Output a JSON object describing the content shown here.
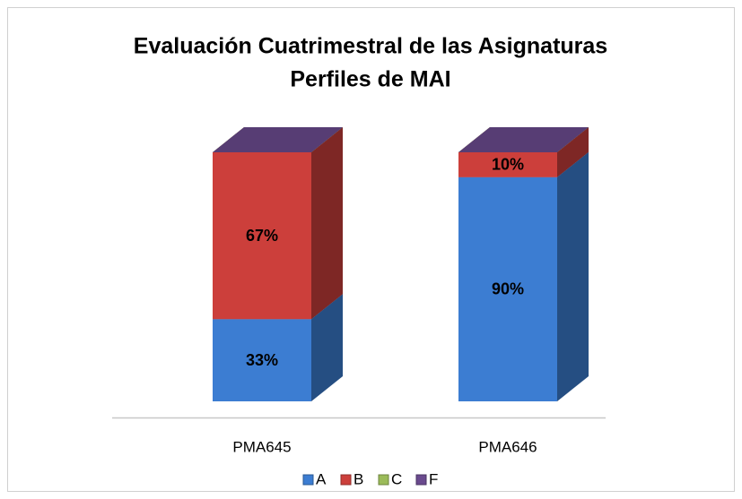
{
  "chart_data": {
    "type": "bar3d_stacked",
    "title": [
      "Evaluación Cuatrimestral de las Asignaturas",
      "Perfiles de MAI"
    ],
    "categories": [
      "PMA645",
      "PMA646"
    ],
    "series": [
      {
        "name": "A",
        "color": "#3c7dd2",
        "values": [
          33,
          90
        ],
        "value_labels": [
          "33%",
          "90%"
        ]
      },
      {
        "name": "B",
        "color": "#cc3f3b",
        "values": [
          67,
          10
        ],
        "value_labels": [
          "67%",
          "10%"
        ]
      },
      {
        "name": "C",
        "color": "#9bbb59",
        "values": [
          0,
          0
        ],
        "value_labels": [
          null,
          null
        ]
      },
      {
        "name": "F",
        "color": "#6a4a8e",
        "values": [
          0,
          0
        ],
        "value_labels": [
          null,
          null
        ]
      }
    ],
    "ylim": [
      0,
      100
    ],
    "legend": "bottom"
  }
}
